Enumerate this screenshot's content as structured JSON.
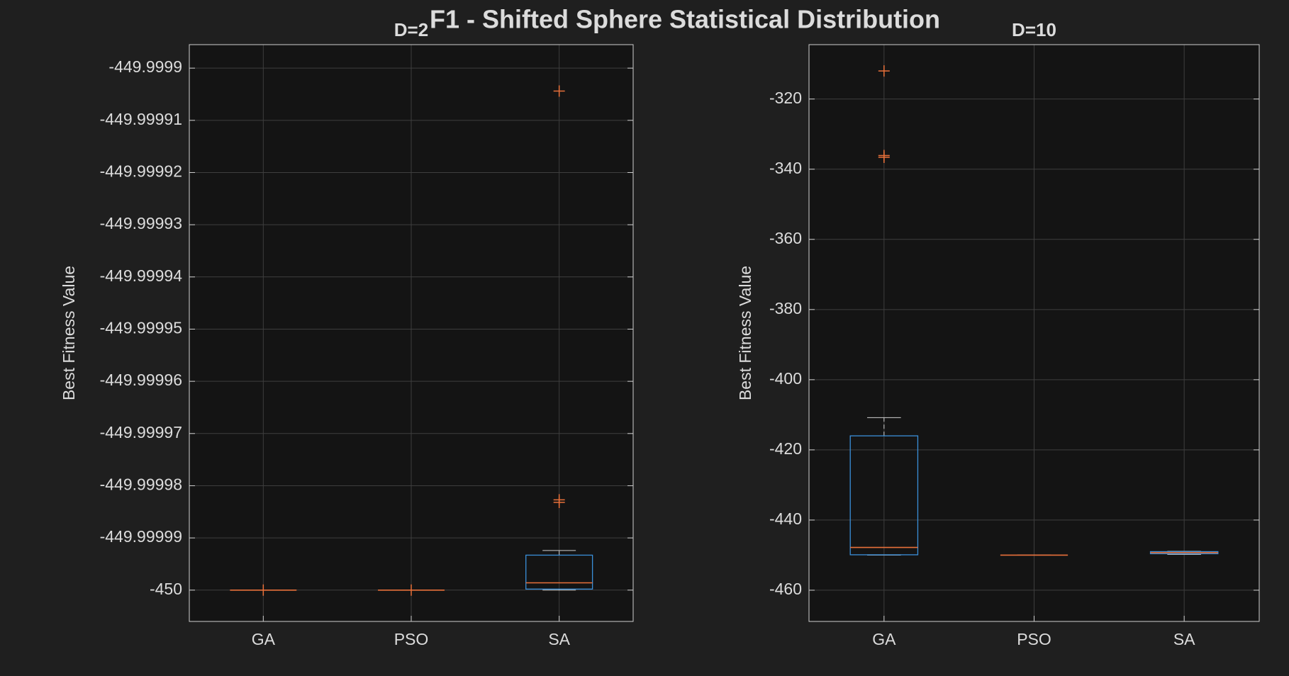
{
  "title": "F1 - Shifted Sphere Statistical Distribution",
  "chart_data": [
    {
      "type": "box",
      "title": "D=2",
      "ylabel": "Best Fitness Value",
      "categories": [
        "GA",
        "PSO",
        "SA"
      ],
      "boxes": [
        {
          "min": -450,
          "q1": -450,
          "median": -450,
          "q3": -450,
          "max": -450,
          "outliers": [
            -450
          ]
        },
        {
          "min": -450,
          "q1": -450,
          "median": -450,
          "q3": -450,
          "max": -450,
          "outliers": [
            -450
          ]
        },
        {
          "min": -450,
          "q1": -449.9999998,
          "median": -449.9999986,
          "q3": -449.9999933,
          "max": -449.9999924,
          "outliers": [
            -449.9999044,
            -449.9999827,
            -449.9999832
          ]
        }
      ],
      "ylim": [
        -450.000006,
        -449.9998955
      ],
      "yticks": [
        -450,
        -449.99999,
        -449.99998,
        -449.99997,
        -449.99996,
        -449.99995,
        -449.99994,
        -449.99993,
        -449.99992,
        -449.99991,
        -449.9999
      ],
      "grid": true,
      "box_color": "#3a8fd9",
      "median_color": "#e8703a",
      "whisker_color": "#cfcfcf",
      "outlier_color": "#e8703a"
    },
    {
      "type": "box",
      "title": "D=10",
      "ylabel": "Best Fitness Value",
      "categories": [
        "GA",
        "PSO",
        "SA"
      ],
      "boxes": [
        {
          "min": -450,
          "q1": -449.9,
          "median": -447.8,
          "q3": -416.0,
          "max": -410.8,
          "outliers": [
            -312.0,
            -336.6,
            -336.1
          ]
        },
        {
          "min": -450,
          "q1": -450,
          "median": -450,
          "q3": -450,
          "max": -450,
          "outliers": []
        },
        {
          "min": -449.8,
          "q1": -449.6,
          "median": -449.3,
          "q3": -449.0,
          "max": -448.9,
          "outliers": []
        }
      ],
      "ylim": [
        -468.9,
        -304.5
      ],
      "yticks": [
        -460,
        -440,
        -420,
        -400,
        -380,
        -360,
        -340,
        -320
      ],
      "grid": true,
      "box_color": "#3a8fd9",
      "median_color": "#e8703a",
      "whisker_color": "#cfcfcf",
      "outlier_color": "#e8703a"
    }
  ]
}
